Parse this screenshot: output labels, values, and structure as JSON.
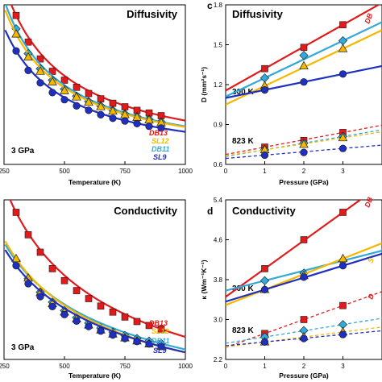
{
  "colors": {
    "DB13": "#e31a1c",
    "DB11": "#33a9d9",
    "SL12": "#f5b800",
    "SL9": "#1f2fbf"
  },
  "chart_data": [
    {
      "id": "a",
      "type": "scatter",
      "title": "Diffusivity",
      "panel_label": "",
      "xlabel": "Temperature (K)",
      "ylabel": "",
      "annotations": [
        "3 GPa"
      ],
      "xlim": [
        250,
        1000
      ],
      "ylim": [
        0,
        1.8
      ],
      "xticks": [
        "250",
        "500",
        "750",
        "1000"
      ],
      "yticks": [],
      "series_labels": [
        "DB13",
        "SL12",
        "DB11",
        "SL9"
      ],
      "series": [
        {
          "name": "DB13",
          "marker": "square",
          "x": [
            300,
            350,
            400,
            450,
            500,
            550,
            600,
            650,
            700,
            750,
            800,
            850,
            900
          ],
          "y": [
            1.68,
            1.38,
            1.19,
            1.05,
            0.95,
            0.87,
            0.8,
            0.74,
            0.69,
            0.65,
            0.61,
            0.58,
            0.55
          ]
        },
        {
          "name": "DB11",
          "marker": "diamond",
          "x": [
            300,
            350,
            400,
            450,
            500,
            550,
            600,
            650,
            700,
            750,
            800,
            850,
            900
          ],
          "y": [
            1.53,
            1.25,
            1.08,
            0.95,
            0.85,
            0.77,
            0.71,
            0.66,
            0.61,
            0.57,
            0.54,
            0.51,
            0.48
          ]
        },
        {
          "name": "SL12",
          "marker": "triangle",
          "x": [
            300,
            350,
            400,
            450,
            500,
            550,
            600,
            650,
            700,
            750,
            800,
            850,
            900
          ],
          "y": [
            1.47,
            1.21,
            1.05,
            0.93,
            0.83,
            0.76,
            0.7,
            0.65,
            0.6,
            0.56,
            0.53,
            0.5,
            0.47
          ]
        },
        {
          "name": "SL9",
          "marker": "circle",
          "x": [
            300,
            350,
            400,
            450,
            500,
            550,
            600,
            650,
            700,
            750,
            800,
            850,
            900
          ],
          "y": [
            1.28,
            1.06,
            0.92,
            0.81,
            0.73,
            0.66,
            0.61,
            0.56,
            0.52,
            0.49,
            0.46,
            0.43,
            0.41
          ]
        }
      ]
    },
    {
      "id": "c",
      "type": "scatter",
      "title": "Diffusivity",
      "panel_label": "c",
      "xlabel": "Pressure (GPa)",
      "ylabel": "D (mm²s⁻¹)",
      "annotations": [
        "300 K",
        "823 K"
      ],
      "xlim": [
        0,
        4
      ],
      "ylim": [
        0.6,
        1.8
      ],
      "xticks": [
        "0",
        "1",
        "2",
        "3"
      ],
      "yticks": [
        "0.6",
        "0.9",
        "1.2",
        "1.5",
        "1.8"
      ],
      "series_labels": [
        "DB"
      ],
      "series": [
        {
          "name": "DB13 300 K",
          "group": "DB13",
          "temp": "300 K",
          "marker": "square",
          "x": [
            1,
            2,
            3
          ],
          "y": [
            1.32,
            1.48,
            1.65
          ]
        },
        {
          "name": "DB11 300 K",
          "group": "DB11",
          "temp": "300 K",
          "marker": "diamond",
          "x": [
            1,
            2,
            3
          ],
          "y": [
            1.25,
            1.42,
            1.53
          ]
        },
        {
          "name": "SL12 300 K",
          "group": "SL12",
          "temp": "300 K",
          "marker": "triangle",
          "x": [
            1,
            2,
            3
          ],
          "y": [
            1.19,
            1.34,
            1.47
          ]
        },
        {
          "name": "SL9 300 K",
          "group": "SL9",
          "temp": "300 K",
          "marker": "circle",
          "x": [
            1,
            2,
            3
          ],
          "y": [
            1.16,
            1.22,
            1.28
          ]
        },
        {
          "name": "DB13 823 K",
          "group": "DB13",
          "temp": "823 K",
          "marker": "square",
          "x": [
            1,
            2,
            3
          ],
          "y": [
            0.73,
            0.78,
            0.84
          ]
        },
        {
          "name": "DB11 823 K",
          "group": "DB11",
          "temp": "823 K",
          "marker": "diamond",
          "x": [
            1,
            2,
            3
          ],
          "y": [
            0.71,
            0.76,
            0.81
          ]
        },
        {
          "name": "SL12 823 K",
          "group": "SL12",
          "temp": "823 K",
          "marker": "triangle",
          "x": [
            1,
            2,
            3
          ],
          "y": [
            0.71,
            0.75,
            0.8
          ]
        },
        {
          "name": "SL9 823 K",
          "group": "SL9",
          "temp": "823 K",
          "marker": "circle",
          "x": [
            1,
            2,
            3
          ],
          "y": [
            0.67,
            0.69,
            0.72
          ]
        }
      ]
    },
    {
      "id": "b",
      "type": "scatter",
      "title": "Conductivity",
      "panel_label": "",
      "xlabel": "Temperature (K)",
      "ylabel": "",
      "annotations": [
        "3 GPa"
      ],
      "xlim": [
        250,
        1000
      ],
      "ylim": [
        2.2,
        5.4
      ],
      "xticks": [
        "250",
        "500",
        "750",
        "1000"
      ],
      "yticks": [],
      "series_labels": [
        "DB13",
        "SL12",
        "DB11",
        "SL9"
      ],
      "series": [
        {
          "name": "DB13",
          "marker": "square",
          "x": [
            300,
            350,
            400,
            450,
            500,
            550,
            600,
            650,
            700,
            750,
            800,
            850,
            900
          ],
          "y": [
            5.15,
            4.7,
            4.35,
            4.02,
            3.78,
            3.58,
            3.42,
            3.27,
            3.15,
            3.05,
            2.96,
            2.88,
            2.81
          ]
        },
        {
          "name": "DB11",
          "marker": "diamond",
          "x": [
            300,
            350,
            400,
            450,
            500,
            550,
            600,
            650,
            700,
            750,
            800,
            850,
            900
          ],
          "y": [
            4.18,
            3.82,
            3.55,
            3.35,
            3.18,
            3.04,
            2.93,
            2.83,
            2.75,
            2.68,
            2.62,
            2.57,
            2.52
          ]
        },
        {
          "name": "SL12",
          "marker": "triangle",
          "x": [
            300,
            350,
            400,
            450,
            500,
            550,
            600,
            650,
            700,
            750,
            800,
            850,
            900
          ],
          "y": [
            4.22,
            3.83,
            3.54,
            3.32,
            3.15,
            3.01,
            2.89,
            2.79,
            2.71,
            2.63,
            2.57,
            2.51,
            2.46
          ]
        },
        {
          "name": "SL9",
          "marker": "circle",
          "x": [
            300,
            350,
            400,
            450,
            500,
            550,
            600,
            650,
            700,
            750,
            800,
            850,
            900
          ],
          "y": [
            4.08,
            3.72,
            3.46,
            3.26,
            3.1,
            2.97,
            2.86,
            2.77,
            2.69,
            2.62,
            2.56,
            2.51,
            2.46
          ]
        }
      ]
    },
    {
      "id": "d",
      "type": "scatter",
      "title": "Conductivity",
      "panel_label": "d",
      "xlabel": "Pressure (GPa)",
      "ylabel": "κ (Wm⁻¹K⁻¹)",
      "annotations": [
        "300 K",
        "823 K"
      ],
      "xlim": [
        0,
        4
      ],
      "ylim": [
        2.2,
        5.4
      ],
      "xticks": [
        "0",
        "1",
        "2",
        "3"
      ],
      "yticks": [
        "2.2",
        "3.0",
        "3.8",
        "4.6",
        "5.4"
      ],
      "series_labels": [
        "DB",
        "S",
        "D"
      ],
      "series": [
        {
          "name": "DB13 300 K",
          "group": "DB13",
          "temp": "300 K",
          "marker": "square",
          "x": [
            1,
            2,
            3
          ],
          "y": [
            4.02,
            4.6,
            5.15
          ]
        },
        {
          "name": "DB11 300 K",
          "group": "DB11",
          "temp": "300 K",
          "marker": "diamond",
          "x": [
            1,
            2,
            3
          ],
          "y": [
            3.78,
            3.93,
            4.18
          ]
        },
        {
          "name": "SL12 300 K",
          "group": "SL12",
          "temp": "300 K",
          "marker": "triangle",
          "x": [
            1,
            2,
            3
          ],
          "y": [
            3.6,
            3.88,
            4.22
          ]
        },
        {
          "name": "SL9 300 K",
          "group": "SL9",
          "temp": "300 K",
          "marker": "circle",
          "x": [
            1,
            2,
            3
          ],
          "y": [
            3.6,
            3.85,
            4.08
          ]
        },
        {
          "name": "DB13 823 K",
          "group": "DB13",
          "temp": "823 K",
          "marker": "square",
          "x": [
            1,
            2,
            3
          ],
          "y": [
            2.72,
            3.0,
            3.28
          ]
        },
        {
          "name": "DB11 823 K",
          "group": "DB11",
          "temp": "823 K",
          "marker": "diamond",
          "x": [
            1,
            2,
            3
          ],
          "y": [
            2.65,
            2.78,
            2.9
          ]
        },
        {
          "name": "SL12 823 K",
          "group": "SL12",
          "temp": "823 K",
          "marker": "triangle",
          "x": [
            1,
            2,
            3
          ],
          "y": [
            2.55,
            2.65,
            2.75
          ]
        },
        {
          "name": "SL9 823 K",
          "group": "SL9",
          "temp": "823 K",
          "marker": "circle",
          "x": [
            1,
            2,
            3
          ],
          "y": [
            2.55,
            2.62,
            2.7
          ]
        }
      ]
    }
  ]
}
